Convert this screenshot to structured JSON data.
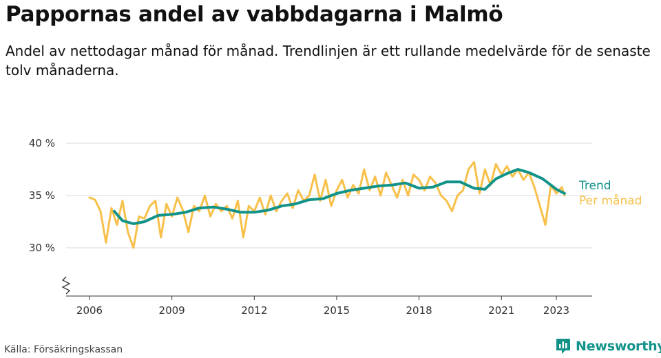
{
  "header": {
    "title": "Pappornas andel av vabbdagarna i Malmö",
    "subtitle": "Andel av nettodagar månad för månad. Trendlinjen är ett rullande medelvärde för de senaste tolv månaderna."
  },
  "footer": {
    "source": "Källa: Försäkringskassan",
    "brand": "Newsworthy",
    "brand_icon": "bar-chart-logo-icon"
  },
  "colors": {
    "monthly": "#f7c04a",
    "trend": "#12938a",
    "grid": "#d9d9d9",
    "axis": "#333333"
  },
  "chart_data": {
    "type": "line",
    "x_ticks": [
      "2006",
      "2009",
      "2012",
      "2015",
      "2018",
      "2021",
      "2023"
    ],
    "y_ticks": [
      "30 %",
      "35 %",
      "40 %"
    ],
    "ylim": [
      25,
      40
    ],
    "y_axis_break": true,
    "grid": true,
    "legend_placement": "line-end labels, right",
    "series": [
      {
        "name": "Trend",
        "x": [
          2006.9,
          2007.2,
          2007.6,
          2008.0,
          2008.5,
          2009.0,
          2009.5,
          2010.0,
          2010.5,
          2011.0,
          2011.5,
          2012.0,
          2012.5,
          2013.0,
          2013.5,
          2014.0,
          2014.5,
          2015.0,
          2015.5,
          2016.0,
          2016.5,
          2017.0,
          2017.5,
          2018.0,
          2018.5,
          2019.0,
          2019.5,
          2020.0,
          2020.4,
          2020.8,
          2021.2,
          2021.6,
          2022.0,
          2022.5,
          2023.0,
          2023.3
        ],
        "values": [
          33.5,
          32.6,
          32.3,
          32.5,
          33.1,
          33.2,
          33.4,
          33.8,
          33.9,
          33.7,
          33.4,
          33.4,
          33.6,
          34.0,
          34.2,
          34.6,
          34.7,
          35.2,
          35.5,
          35.7,
          35.9,
          36.0,
          36.2,
          35.7,
          35.8,
          36.3,
          36.3,
          35.7,
          35.6,
          36.6,
          37.1,
          37.5,
          37.2,
          36.6,
          35.6,
          35.2
        ]
      },
      {
        "name": "Per månad",
        "x": [
          2006.0,
          2006.2,
          2006.4,
          2006.6,
          2006.8,
          2007.0,
          2007.2,
          2007.4,
          2007.6,
          2007.8,
          2008.0,
          2008.2,
          2008.4,
          2008.6,
          2008.8,
          2009.0,
          2009.2,
          2009.4,
          2009.6,
          2009.8,
          2010.0,
          2010.2,
          2010.4,
          2010.6,
          2010.8,
          2011.0,
          2011.2,
          2011.4,
          2011.6,
          2011.8,
          2012.0,
          2012.2,
          2012.4,
          2012.6,
          2012.8,
          2013.0,
          2013.2,
          2013.4,
          2013.6,
          2013.8,
          2014.0,
          2014.2,
          2014.4,
          2014.6,
          2014.8,
          2015.0,
          2015.2,
          2015.4,
          2015.6,
          2015.8,
          2016.0,
          2016.2,
          2016.4,
          2016.6,
          2016.8,
          2017.0,
          2017.2,
          2017.4,
          2017.6,
          2017.8,
          2018.0,
          2018.2,
          2018.4,
          2018.6,
          2018.8,
          2019.0,
          2019.2,
          2019.4,
          2019.6,
          2019.8,
          2020.0,
          2020.2,
          2020.4,
          2020.6,
          2020.8,
          2021.0,
          2021.2,
          2021.4,
          2021.6,
          2021.8,
          2022.0,
          2022.2,
          2022.4,
          2022.6,
          2022.8,
          2023.0,
          2023.2,
          2023.3
        ],
        "values": [
          34.8,
          34.6,
          33.5,
          30.5,
          33.8,
          32.2,
          34.5,
          31.5,
          30.0,
          33.0,
          32.8,
          34.0,
          34.5,
          31.0,
          34.2,
          33.0,
          34.8,
          33.6,
          31.5,
          34.0,
          33.5,
          35.0,
          33.0,
          34.2,
          33.5,
          34.0,
          32.8,
          34.5,
          31.0,
          34.0,
          33.5,
          34.8,
          33.2,
          35.0,
          33.5,
          34.5,
          35.2,
          33.8,
          35.5,
          34.5,
          35.0,
          37.0,
          34.5,
          36.5,
          34.0,
          35.5,
          36.5,
          34.8,
          36.0,
          35.2,
          37.5,
          35.5,
          36.8,
          35.0,
          37.2,
          36.0,
          34.8,
          36.5,
          35.0,
          37.0,
          36.5,
          35.5,
          36.8,
          36.2,
          35.0,
          34.5,
          33.5,
          35.0,
          35.5,
          37.5,
          38.2,
          35.2,
          37.5,
          36.0,
          38.0,
          37.0,
          37.8,
          36.8,
          37.5,
          36.5,
          37.2,
          35.8,
          34.0,
          32.2,
          36.0,
          35.2,
          35.8,
          35.0
        ]
      }
    ]
  }
}
